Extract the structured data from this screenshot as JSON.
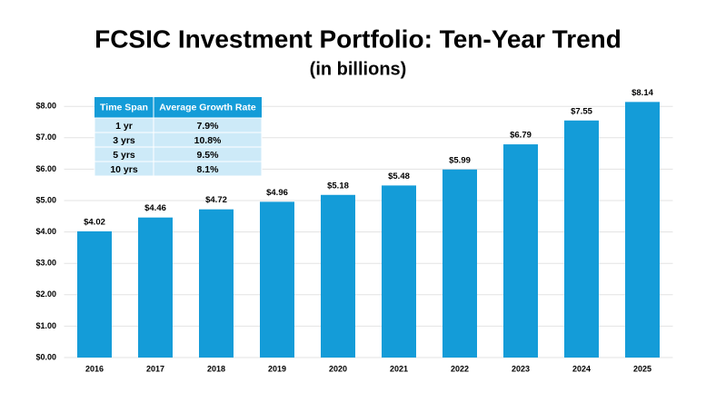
{
  "chart_data": {
    "type": "bar",
    "title": "FCSIC Investment Portfolio: Ten-Year Trend",
    "subtitle": "(in billions)",
    "categories": [
      "2016",
      "2017",
      "2018",
      "2019",
      "2020",
      "2021",
      "2022",
      "2023",
      "2024",
      "2025"
    ],
    "values": [
      4.02,
      4.46,
      4.72,
      4.96,
      5.18,
      5.48,
      5.99,
      6.79,
      7.55,
      8.14
    ],
    "value_labels": [
      "$4.02",
      "$4.46",
      "$4.72",
      "$4.96",
      "$5.18",
      "$5.48",
      "$5.99",
      "$6.79",
      "$7.55",
      "$8.14"
    ],
    "color": "#149cd8",
    "ylim": [
      0,
      9
    ],
    "yticks": [
      {
        "value": 0,
        "label": "$0.00"
      },
      {
        "value": 1,
        "label": "$1.00"
      },
      {
        "value": 2,
        "label": "$2.00"
      },
      {
        "value": 3,
        "label": "$3.00"
      },
      {
        "value": 4,
        "label": "$4.00"
      },
      {
        "value": 5,
        "label": "$5.00"
      },
      {
        "value": 6,
        "label": "$6.00"
      },
      {
        "value": 7,
        "label": "$7.00"
      },
      {
        "value": 8,
        "label": "$8.00"
      }
    ],
    "grid": true
  },
  "table": {
    "header": [
      "Time Span",
      "Average Growth Rate"
    ],
    "rows": [
      [
        "1 yr",
        "7.9%"
      ],
      [
        "3 yrs",
        "10.8%"
      ],
      [
        "5 yrs",
        "9.5%"
      ],
      [
        "10 yrs",
        "8.1%"
      ]
    ]
  }
}
